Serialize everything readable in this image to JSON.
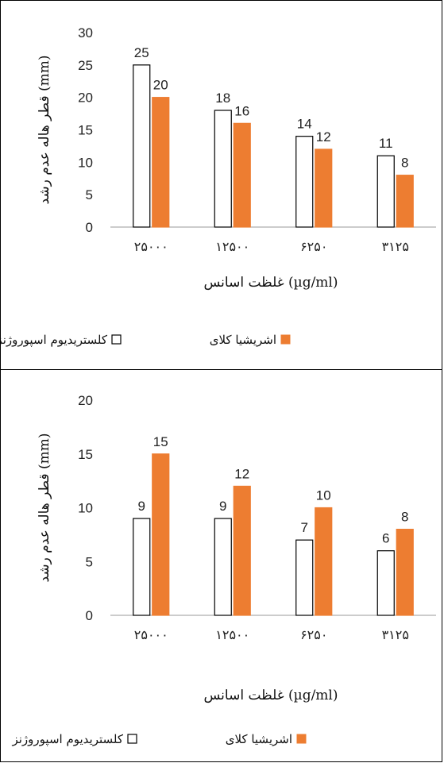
{
  "chart_data": [
    {
      "type": "bar",
      "categories": [
        "۲۵۰۰۰",
        "۱۲۵۰۰",
        "۶۲۵۰",
        "۳۱۲۵"
      ],
      "series": [
        {
          "name": "کلستریدیوم اسپوروژنز",
          "values": [
            25,
            18,
            14,
            11
          ],
          "color": "#ffffff",
          "stroke": "#000000"
        },
        {
          "name": "اشریشیا کلای",
          "values": [
            20,
            16,
            12,
            8
          ],
          "color": "#ED7D31",
          "stroke": "#ED7D31"
        }
      ],
      "xlabel": "غلظت اسانس (µg/ml)",
      "ylabel": "قطر هاله عدم رشد (mm)",
      "ylim": [
        0,
        30
      ],
      "yticks": [
        0,
        5,
        10,
        15,
        20,
        25,
        30
      ],
      "legend_position": "bottom",
      "grid": false
    },
    {
      "type": "bar",
      "categories": [
        "۲۵۰۰۰",
        "۱۲۵۰۰",
        "۶۲۵۰",
        "۳۱۲۵"
      ],
      "series": [
        {
          "name": "کلستریدیوم اسپوروژنز",
          "values": [
            9,
            9,
            7,
            6
          ],
          "color": "#ffffff",
          "stroke": "#000000"
        },
        {
          "name": "اشریشیا کلای",
          "values": [
            15,
            12,
            10,
            8
          ],
          "color": "#ED7D31",
          "stroke": "#ED7D31"
        }
      ],
      "xlabel": "غلظت اسانس (µg/ml)",
      "ylabel": "قطر هاله عدم رشد (mm)",
      "ylim": [
        0,
        20
      ],
      "yticks": [
        0,
        5,
        10,
        15,
        20
      ],
      "legend_position": "bottom",
      "grid": false
    }
  ]
}
